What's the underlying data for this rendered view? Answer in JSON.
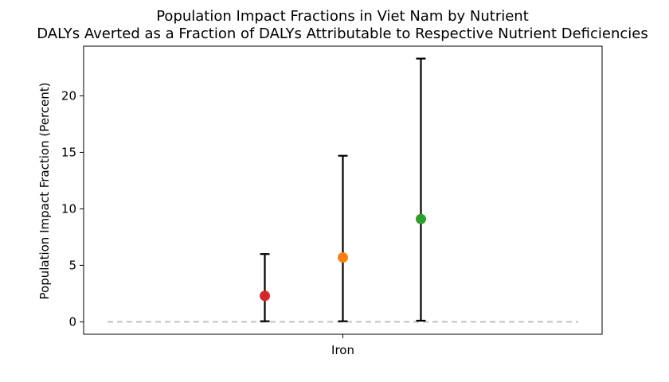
{
  "chart_data": {
    "type": "scatter",
    "title": "Population Impact Fractions in Viet Nam by Nutrient",
    "subtitle": "DALYs Averted as a Fraction of DALYs Attributable to Respective Nutrient Deficiencies",
    "xlabel": "",
    "ylabel": "Population Impact Fraction (Percent)",
    "categories": [
      "Iron"
    ],
    "ylim": [
      -1.1,
      24.4
    ],
    "yticks": [
      0,
      5,
      10,
      15,
      20
    ],
    "grid": false,
    "baseline": {
      "value": 0,
      "color": "#c0c0c0",
      "style": "dashed"
    },
    "points": [
      {
        "category": "Iron",
        "offset": -1,
        "value": 2.3,
        "lower": 0.05,
        "upper": 6.0,
        "color": "#d62728"
      },
      {
        "category": "Iron",
        "offset": 0,
        "value": 5.7,
        "lower": 0.05,
        "upper": 14.7,
        "color": "#ff7f0e"
      },
      {
        "category": "Iron",
        "offset": 1,
        "value": 9.1,
        "lower": 0.1,
        "upper": 23.3,
        "color": "#2ca02c"
      }
    ]
  }
}
